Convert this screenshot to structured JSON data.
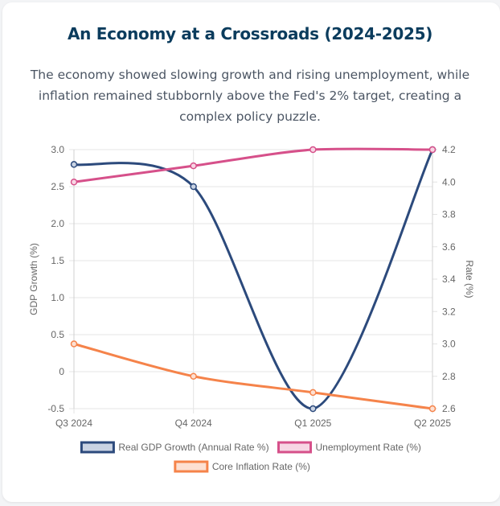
{
  "header": {
    "title": "An Economy at a Crossroads (2024-2025)",
    "subtitle": "The economy showed slowing growth and rising unemployment, while inflation remained stubbornly above the Fed's 2% target, creating a complex policy puzzle."
  },
  "chart_data": {
    "type": "line",
    "title": "An Economy at a Crossroads (2024-2025)",
    "categories": [
      "Q3 2024",
      "Q4 2024",
      "Q1 2025",
      "Q2 2025"
    ],
    "y_left": {
      "label": "GDP Growth (%)",
      "range": [
        -0.5,
        3.0
      ],
      "ticks": [
        3.0,
        2.5,
        2.0,
        1.5,
        1.0,
        0.5,
        0,
        -0.5
      ],
      "tick_labels": [
        "3.0",
        "2.5",
        "2.0",
        "1.5",
        "1.0",
        "0.5",
        "0",
        "-0.5"
      ]
    },
    "y_right": {
      "label": "Rate (%)",
      "range": [
        2.6,
        4.2
      ],
      "ticks": [
        4.2,
        4.0,
        3.8,
        3.6,
        3.4,
        3.2,
        3.0,
        2.8,
        2.6
      ],
      "tick_labels": [
        "4.2",
        "4.0",
        "3.8",
        "3.6",
        "3.4",
        "3.2",
        "3.0",
        "2.8",
        "2.6"
      ]
    },
    "grid": true,
    "legend_position": "bottom",
    "series": [
      {
        "name": "Real GDP Growth (Annual Rate %)",
        "axis": "left",
        "values": [
          2.8,
          2.5,
          -0.5,
          3.0
        ],
        "color": "#2c4a7c",
        "fill": "#c9d3e3"
      },
      {
        "name": "Unemployment Rate (%)",
        "axis": "right",
        "values": [
          4.0,
          4.1,
          4.2,
          4.2
        ],
        "color": "#d6508a",
        "fill": "#f7d6e4"
      },
      {
        "name": "Core Inflation Rate (%)",
        "axis": "right",
        "values": [
          3.0,
          2.8,
          2.7,
          2.6
        ],
        "color": "#f5834a",
        "fill": "#fde0d2"
      }
    ]
  }
}
